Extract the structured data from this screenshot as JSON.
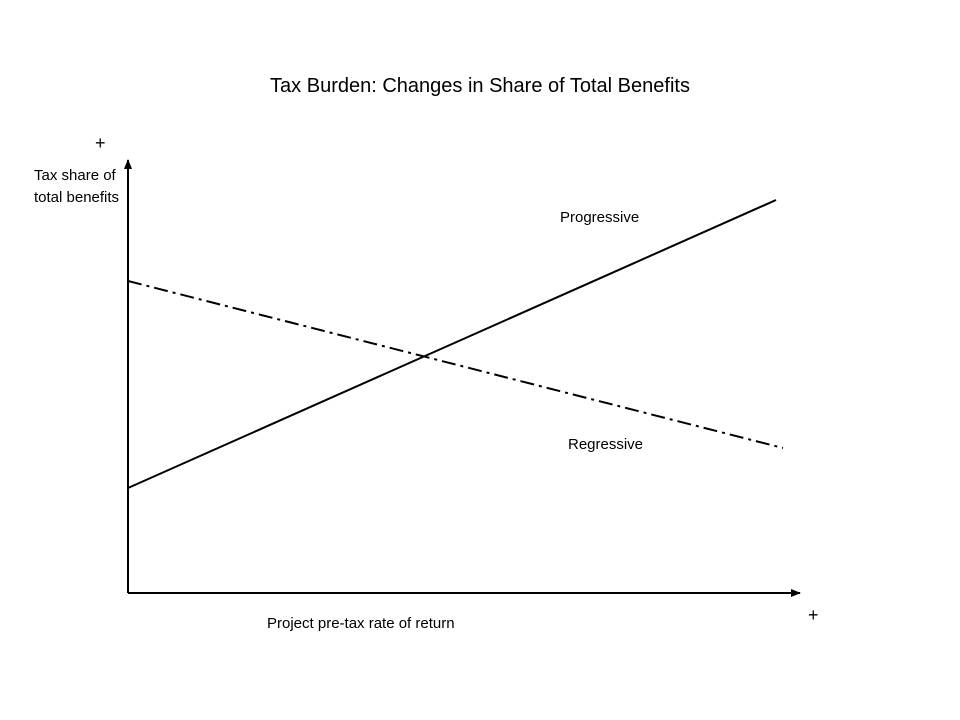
{
  "title": "Tax Burden: Changes in Share of Total Benefits",
  "y_axis": {
    "label": "Tax share of total benefits",
    "direction_marker": "+"
  },
  "x_axis": {
    "label": "Project pre-tax rate of return",
    "direction_marker": "+"
  },
  "curves": [
    {
      "name": "Progressive",
      "trend": "increasing",
      "style": "solid"
    },
    {
      "name": "Regressive",
      "trend": "decreasing",
      "style": "dash-dot"
    }
  ],
  "colors": {
    "lines": "#000000",
    "background": "#ffffff"
  }
}
